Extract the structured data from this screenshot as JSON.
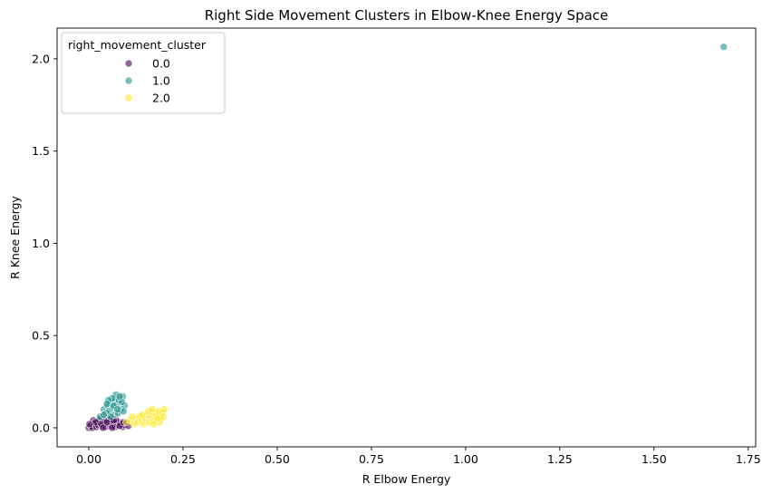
{
  "chart_data": {
    "type": "scatter",
    "title": "Right Side Movement Clusters in Elbow-Knee Energy Space",
    "xlabel": "R Elbow Energy",
    "ylabel": "R Knee Energy",
    "xlim": [
      -0.0842,
      1.7698
    ],
    "ylim": [
      -0.1034,
      2.1666
    ],
    "xticks": [
      0.0,
      0.25,
      0.5,
      0.75,
      1.0,
      1.25,
      1.5,
      1.75
    ],
    "xtick_labels": [
      "0.00",
      "0.25",
      "0.50",
      "0.75",
      "1.00",
      "1.25",
      "1.50",
      "1.75"
    ],
    "yticks": [
      0.0,
      0.5,
      1.0,
      1.5,
      2.0
    ],
    "ytick_labels": [
      "0.0",
      "0.5",
      "1.0",
      "1.5",
      "2.0"
    ],
    "grid": false,
    "legend": {
      "title": "right_movement_cluster",
      "placement": "upper-left",
      "entries": [
        "0.0",
        "1.0",
        "2.0"
      ]
    },
    "point_alpha": 0.6,
    "series": [
      {
        "name": "0.0",
        "color": "#440154",
        "points": [
          [
            0.0,
            0.0
          ],
          [
            0.005,
            0.01
          ],
          [
            0.01,
            0.0
          ],
          [
            0.015,
            0.02
          ],
          [
            0.02,
            0.005
          ],
          [
            0.025,
            0.015
          ],
          [
            0.03,
            0.03
          ],
          [
            0.035,
            0.01
          ],
          [
            0.04,
            0.025
          ],
          [
            0.045,
            0.005
          ],
          [
            0.05,
            0.02
          ],
          [
            0.055,
            0.035
          ],
          [
            0.06,
            0.01
          ],
          [
            0.065,
            0.025
          ],
          [
            0.07,
            0.005
          ],
          [
            0.075,
            0.015
          ],
          [
            0.08,
            0.03
          ],
          [
            0.085,
            0.02
          ],
          [
            0.09,
            0.005
          ],
          [
            0.095,
            0.015
          ],
          [
            0.1,
            0.025
          ],
          [
            0.012,
            0.04
          ],
          [
            0.028,
            0.045
          ],
          [
            0.042,
            0.04
          ],
          [
            0.058,
            0.048
          ],
          [
            0.072,
            0.042
          ],
          [
            0.018,
            0.03
          ],
          [
            0.033,
            0.02
          ],
          [
            0.048,
            0.03
          ],
          [
            0.066,
            0.04
          ],
          [
            0.082,
            0.01
          ],
          [
            0.002,
            0.02
          ],
          [
            0.038,
            0.0
          ],
          [
            0.062,
            0.0
          ],
          [
            0.092,
            0.03
          ],
          [
            0.105,
            0.01
          ]
        ]
      },
      {
        "name": "1.0",
        "color": "#21918c",
        "points": [
          [
            0.03,
            0.06
          ],
          [
            0.04,
            0.1
          ],
          [
            0.045,
            0.08
          ],
          [
            0.05,
            0.12
          ],
          [
            0.055,
            0.09
          ],
          [
            0.06,
            0.14
          ],
          [
            0.065,
            0.11
          ],
          [
            0.07,
            0.16
          ],
          [
            0.075,
            0.13
          ],
          [
            0.08,
            0.15
          ],
          [
            0.085,
            0.1
          ],
          [
            0.09,
            0.17
          ],
          [
            0.095,
            0.12
          ],
          [
            0.068,
            0.07
          ],
          [
            0.058,
            0.06
          ],
          [
            0.078,
            0.08
          ],
          [
            0.088,
            0.14
          ],
          [
            0.072,
            0.18
          ],
          [
            0.062,
            0.16
          ],
          [
            0.052,
            0.15
          ],
          [
            0.048,
            0.13
          ],
          [
            0.082,
            0.17
          ],
          [
            0.092,
            0.09
          ],
          [
            0.04,
            0.07
          ],
          [
            0.066,
            0.12
          ],
          [
            0.076,
            0.1
          ],
          [
            1.685,
            2.065
          ]
        ]
      },
      {
        "name": "2.0",
        "color": "#fde725",
        "points": [
          [
            0.1,
            0.03
          ],
          [
            0.11,
            0.04
          ],
          [
            0.12,
            0.02
          ],
          [
            0.125,
            0.05
          ],
          [
            0.13,
            0.03
          ],
          [
            0.135,
            0.06
          ],
          [
            0.14,
            0.04
          ],
          [
            0.145,
            0.02
          ],
          [
            0.15,
            0.05
          ],
          [
            0.155,
            0.07
          ],
          [
            0.16,
            0.03
          ],
          [
            0.165,
            0.06
          ],
          [
            0.17,
            0.08
          ],
          [
            0.175,
            0.04
          ],
          [
            0.18,
            0.07
          ],
          [
            0.185,
            0.09
          ],
          [
            0.19,
            0.05
          ],
          [
            0.195,
            0.08
          ],
          [
            0.2,
            0.1
          ],
          [
            0.188,
            0.03
          ],
          [
            0.172,
            0.02
          ],
          [
            0.158,
            0.09
          ],
          [
            0.142,
            0.07
          ],
          [
            0.198,
            0.06
          ],
          [
            0.115,
            0.06
          ],
          [
            0.168,
            0.1
          ],
          [
            0.182,
            0.05
          ]
        ]
      }
    ]
  }
}
